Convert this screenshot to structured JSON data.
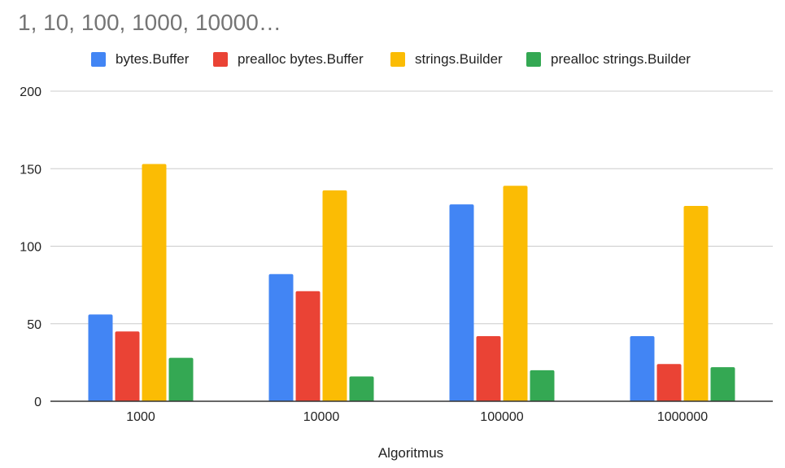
{
  "chart_data": {
    "type": "bar",
    "title": "1, 10, 100, 1000, 10000…",
    "xlabel": "Algoritmus",
    "ylabel": "",
    "categories": [
      "1000",
      "10000",
      "100000",
      "1000000"
    ],
    "series": [
      {
        "name": "bytes.Buffer",
        "color": "#4285F4",
        "values": [
          56,
          82,
          127,
          42
        ]
      },
      {
        "name": "prealloc bytes.Buffer",
        "color": "#EA4335",
        "values": [
          45,
          71,
          42,
          24
        ]
      },
      {
        "name": "strings.Builder",
        "color": "#FBBC04",
        "values": [
          153,
          136,
          139,
          126
        ]
      },
      {
        "name": "prealloc strings.Builder",
        "color": "#34A853",
        "values": [
          28,
          16,
          20,
          22
        ]
      }
    ],
    "ylim": [
      0,
      200
    ],
    "yticks": [
      "0",
      "50",
      "100",
      "150",
      "200"
    ],
    "grid": true,
    "legend_position": "top"
  }
}
